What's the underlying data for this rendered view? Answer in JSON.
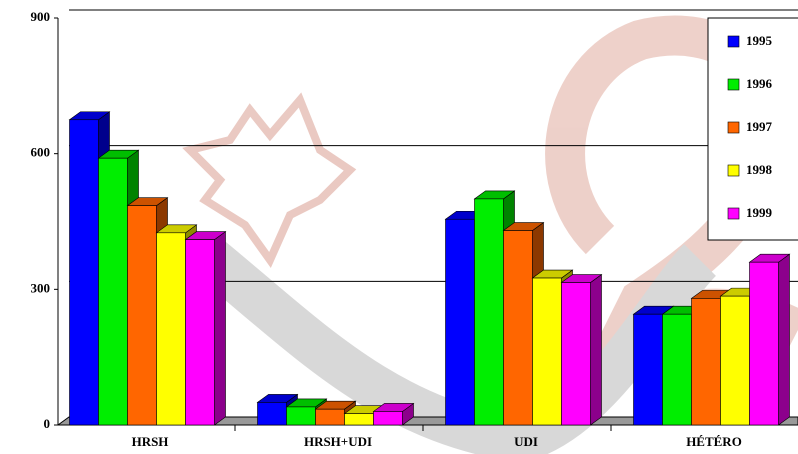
{
  "chart_data": {
    "type": "bar3d",
    "categories": [
      "HRSH",
      "HRSH+UDI",
      "UDI",
      "HÉTÉRO"
    ],
    "series": [
      {
        "name": "1995",
        "color": "#0000ff",
        "values": [
          675,
          50,
          455,
          245
        ]
      },
      {
        "name": "1996",
        "color": "#00ee00",
        "values": [
          590,
          40,
          500,
          245
        ]
      },
      {
        "name": "1997",
        "color": "#ff6600",
        "values": [
          485,
          35,
          430,
          280
        ]
      },
      {
        "name": "1998",
        "color": "#ffff00",
        "values": [
          425,
          25,
          325,
          285
        ]
      },
      {
        "name": "1999",
        "color": "#ff00ff",
        "values": [
          410,
          30,
          315,
          360
        ]
      }
    ],
    "ylim": [
      0,
      900
    ],
    "yticks": [
      0,
      300,
      600,
      900
    ],
    "grid": true,
    "legend": "top-right"
  }
}
